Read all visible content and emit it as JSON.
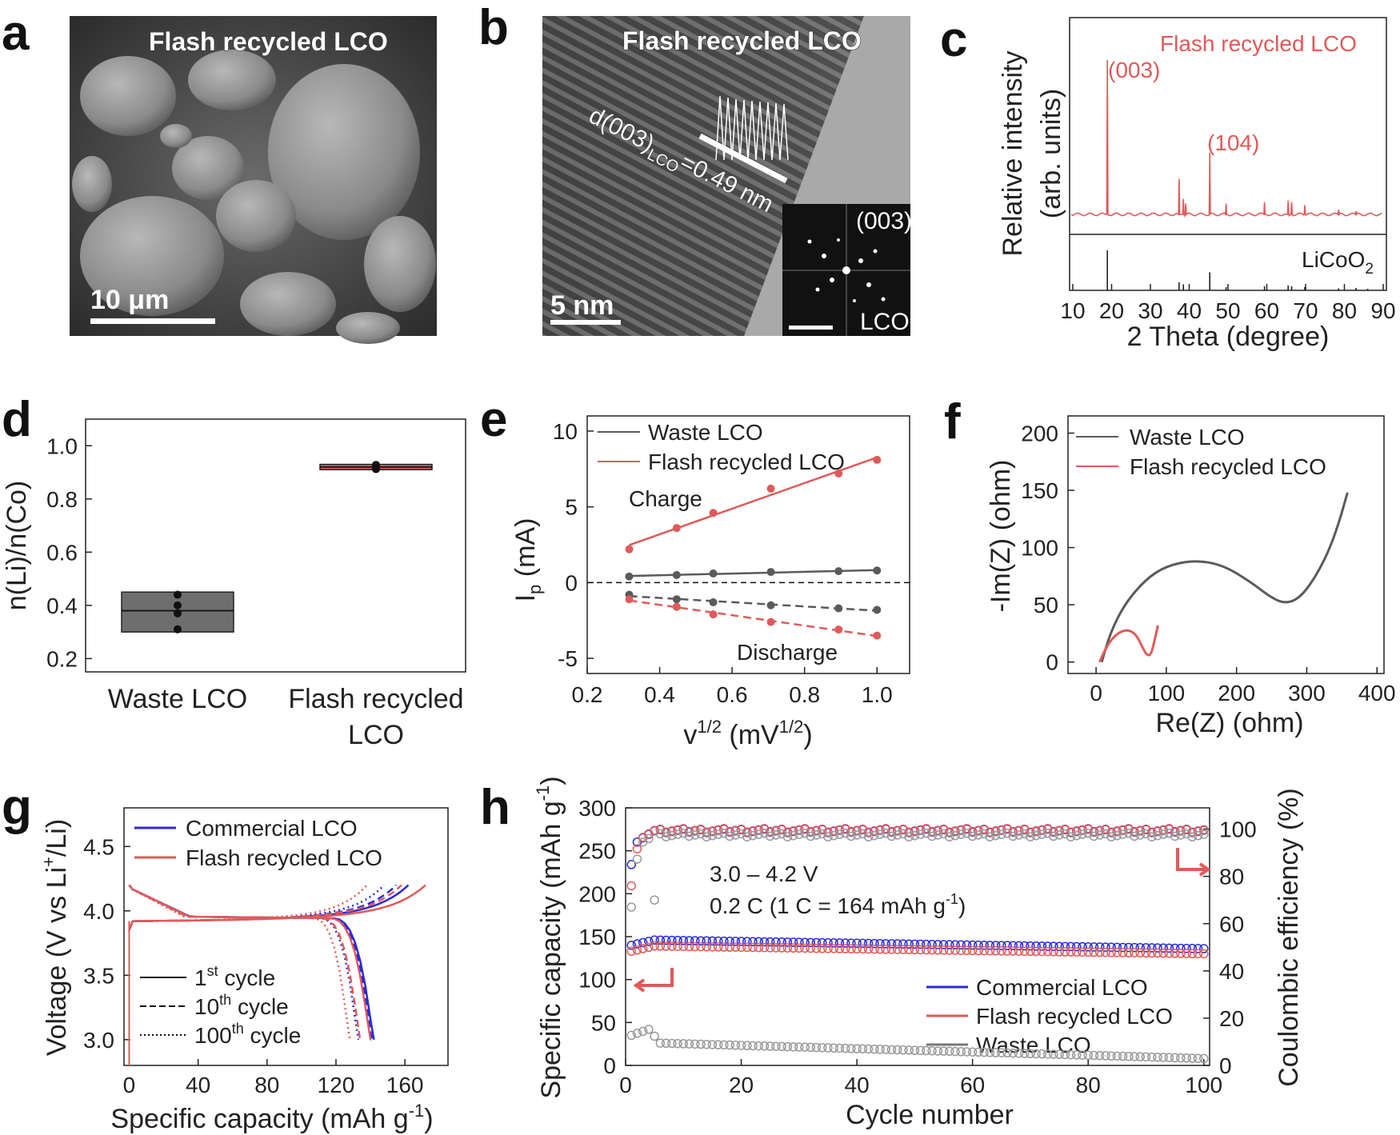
{
  "figure": {
    "panel_labels": [
      "a",
      "b",
      "c",
      "d",
      "e",
      "f",
      "g",
      "h"
    ]
  },
  "panel_a": {
    "title": "Flash recycled LCO",
    "scale_bar": "10 μm"
  },
  "panel_b": {
    "title": "Flash recycled LCO",
    "d_spacing_prefix": "d(003)",
    "d_spacing_sub": "LCO",
    "d_spacing_value": "=0.49 nm",
    "scale_bar": "5 nm",
    "inset_label_top": "(003)",
    "inset_label_bottom": "LCO"
  },
  "colors": {
    "red": "#e05a5a",
    "dark_red": "#d43c3c",
    "gray": "#5a5a5a",
    "blue": "#2a2ad8",
    "light_gray": "#999999"
  },
  "chart_data": [
    {
      "panel": "c",
      "type": "line",
      "title": "Flash recycled LCO",
      "reference_label": "LiCoO",
      "reference_sub": "2",
      "xlabel": "2 Theta (degree)",
      "ylabel_line1": "Relative intensity",
      "ylabel_line2": "(arb. units)",
      "xlim": [
        10,
        90
      ],
      "x_ticks": [
        "10",
        "20",
        "30",
        "40",
        "50",
        "60",
        "70",
        "80",
        "90"
      ],
      "peak_labels": [
        "(003)",
        "(104)"
      ],
      "peaks": [
        [
          18.9,
          100
        ],
        [
          37.4,
          23
        ],
        [
          38.5,
          10
        ],
        [
          39.1,
          7
        ],
        [
          45.3,
          40
        ],
        [
          49.5,
          7
        ],
        [
          59.4,
          8
        ],
        [
          65.5,
          9
        ],
        [
          66.4,
          8
        ],
        [
          69.8,
          6
        ],
        [
          78.5,
          3
        ],
        [
          83.0,
          2
        ]
      ],
      "reference_lines": [
        [
          18.9,
          100
        ],
        [
          37.4,
          20
        ],
        [
          38.5,
          15
        ],
        [
          45.3,
          45
        ],
        [
          49.5,
          8
        ],
        [
          59.4,
          10
        ],
        [
          65.5,
          12
        ],
        [
          66.4,
          10
        ],
        [
          69.8,
          8
        ],
        [
          78.5,
          5
        ],
        [
          83.0,
          6
        ],
        [
          86.0,
          4
        ]
      ]
    },
    {
      "panel": "d",
      "type": "box",
      "ylabel": "n(Li)/n(Co)",
      "categories": [
        "Waste LCO",
        "Flash recycled LCO"
      ],
      "category_line2": [
        "",
        "LCO"
      ],
      "category_line1": [
        "Waste LCO",
        "Flash recycled"
      ],
      "ylim": [
        0.15,
        1.1
      ],
      "y_ticks": [
        "0.2",
        "0.4",
        "0.6",
        "0.8",
        "1.0"
      ],
      "boxes": [
        {
          "name": "Waste LCO",
          "q1": 0.3,
          "median": 0.38,
          "q3": 0.45,
          "points": [
            0.31,
            0.37,
            0.4,
            0.44
          ]
        },
        {
          "name": "Flash recycled LCO",
          "q1": 0.91,
          "median": 0.92,
          "q3": 0.93,
          "points": [
            0.912,
            0.918,
            0.922,
            0.928
          ]
        }
      ]
    },
    {
      "panel": "e",
      "type": "scatter",
      "xlabel": "v",
      "xlabel_sup": "1/2",
      "xlabel_unit": " (mV",
      "xlabel_unit_sup": "1/2",
      "xlabel_close": ")",
      "ylabel": "I",
      "ylabel_sub": "p",
      "ylabel_unit": " (mA)",
      "xlim": [
        0.2,
        1.09
      ],
      "ylim": [
        -6,
        11
      ],
      "x_ticks": [
        "0.2",
        "0.4",
        "0.6",
        "0.8",
        "1.0"
      ],
      "y_ticks": [
        "-5",
        "0",
        "5",
        "10"
      ],
      "annotations": [
        "Charge",
        "Discharge"
      ],
      "x": [
        0.316,
        0.447,
        0.548,
        0.707,
        0.894,
        1.0
      ],
      "series": [
        {
          "name": "Waste LCO",
          "charge": [
            0.4,
            0.5,
            0.6,
            0.7,
            0.75,
            0.8
          ],
          "discharge": [
            -0.8,
            -1.1,
            -1.3,
            -1.5,
            -1.7,
            -1.8
          ]
        },
        {
          "name": "Flash recycled LCO",
          "charge": [
            2.2,
            3.6,
            4.6,
            6.2,
            7.2,
            8.1
          ],
          "discharge": [
            -1.1,
            -1.6,
            -2.1,
            -2.6,
            -3.1,
            -3.5
          ]
        }
      ]
    },
    {
      "panel": "f",
      "type": "line",
      "xlabel": "Re(Z) (ohm)",
      "ylabel": "-Im(Z) (ohm)",
      "xlim": [
        -40,
        410
      ],
      "ylim": [
        -10,
        215
      ],
      "x_ticks": [
        "0",
        "100",
        "200",
        "300",
        "400"
      ],
      "y_ticks": [
        "0",
        "50",
        "100",
        "150",
        "200"
      ],
      "series": [
        {
          "name": "Waste LCO",
          "points": [
            [
              8,
              0
            ],
            [
              20,
              25
            ],
            [
              40,
              50
            ],
            [
              70,
              72
            ],
            [
              100,
              84
            ],
            [
              140,
              89
            ],
            [
              180,
              85
            ],
            [
              220,
              70
            ],
            [
              250,
              56
            ],
            [
              270,
              51
            ],
            [
              290,
              56
            ],
            [
              310,
              72
            ],
            [
              330,
              95
            ],
            [
              345,
              120
            ],
            [
              358,
              148
            ]
          ]
        },
        {
          "name": "Flash recycled LCO",
          "points": [
            [
              5,
              0
            ],
            [
              12,
              10
            ],
            [
              22,
              20
            ],
            [
              35,
              27
            ],
            [
              48,
              28
            ],
            [
              58,
              23
            ],
            [
              66,
              13
            ],
            [
              72,
              6
            ],
            [
              78,
              6
            ],
            [
              83,
              18
            ],
            [
              88,
              32
            ]
          ]
        }
      ]
    },
    {
      "panel": "g",
      "type": "line",
      "xlabel": "Specific capacity (mAh g",
      "xlabel_sup": "-1",
      "xlabel_close": ")",
      "ylabel": "Voltage (V vs Li",
      "ylabel_sup": "+",
      "ylabel_close": "/Li)",
      "xlim": [
        -3,
        185
      ],
      "ylim": [
        2.8,
        4.8
      ],
      "x_ticks": [
        "0",
        "40",
        "80",
        "120",
        "160"
      ],
      "y_ticks": [
        "3.0",
        "3.5",
        "4.0",
        "4.5"
      ],
      "cycle_legend": [
        {
          "pre": "1",
          "sup": "st",
          "post": " cycle",
          "style": "solid"
        },
        {
          "pre": "10",
          "sup": "th",
          "post": " cycle",
          "style": "dashed"
        },
        {
          "pre": "100",
          "sup": "th",
          "post": " cycle",
          "style": "dotted"
        }
      ],
      "series": [
        {
          "name": "Commercial LCO",
          "charge_end": [
            162,
            155,
            148
          ],
          "discharge_end": [
            142,
            141,
            133
          ]
        },
        {
          "name": "Flash recycled LCO",
          "charge_end": [
            172,
            158,
            138
          ],
          "discharge_end": [
            140,
            134,
            128
          ]
        }
      ]
    },
    {
      "panel": "h",
      "type": "scatter",
      "xlabel": "Cycle number",
      "ylabel_left": "Specific capacity (mAh g",
      "ylabel_left_sup": "-1",
      "ylabel_left_close": ")",
      "ylabel_right": "Coulombic efficiency (%)",
      "xlim": [
        0,
        101
      ],
      "ylim_left": [
        0,
        300
      ],
      "ylim_right": [
        0,
        109
      ],
      "x_ticks": [
        "0",
        "20",
        "40",
        "60",
        "80",
        "100"
      ],
      "y_left_ticks": [
        "0",
        "50",
        "100",
        "150",
        "200",
        "250",
        "300"
      ],
      "y_right_ticks": [
        "0",
        "20",
        "40",
        "60",
        "80",
        "100"
      ],
      "condition_line1": "3.0 – 4.2 V",
      "condition_line2_pre": "0.2 C (1 C = 164 mAh g",
      "condition_line2_sup": "-1",
      "condition_line2_close": ")",
      "series": [
        {
          "name": "Commercial LCO",
          "capacity_start": 140,
          "capacity_end": 136,
          "ce_start": 85,
          "ce_plateau": 99.3
        },
        {
          "name": "Flash recycled LCO",
          "capacity_start": 133,
          "capacity_end": 130,
          "ce_start": 76,
          "ce_plateau": 99.5
        },
        {
          "name": "Waste LCO",
          "capacity_start": 35,
          "capacity_peak": 42,
          "capacity_end": 8,
          "ce_start": 67,
          "ce_plateau": 97.5
        }
      ]
    }
  ]
}
